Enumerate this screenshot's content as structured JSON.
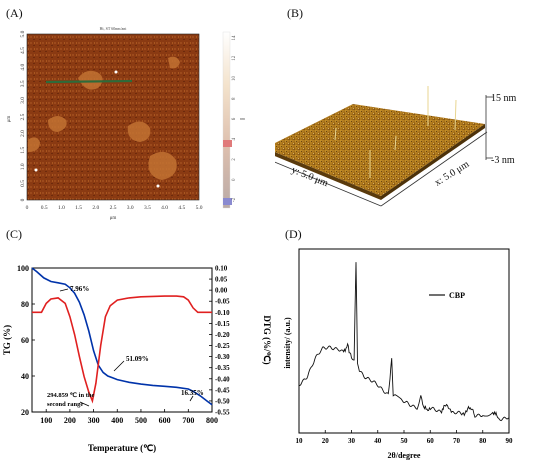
{
  "panels": {
    "a": {
      "label": "(A)",
      "image_header": "Ht, ST 60nm/ant",
      "x_axis_label": "μm",
      "y_axis_label": "μm",
      "x_ticks": [
        "0",
        "0.5",
        "1.0",
        "1.5",
        "2.0",
        "2.5",
        "3.0",
        "3.5",
        "4.0",
        "4.5",
        "5.0"
      ],
      "y_ticks": [
        "0",
        "0.5",
        "1.0",
        "1.5",
        "2.0",
        "2.5",
        "3.0",
        "3.5",
        "4.0",
        "4.5",
        "5.0"
      ],
      "scale_ticks": [
        "14",
        "12",
        "10",
        "8",
        "6",
        "4",
        "2",
        "0",
        "-2"
      ],
      "scale_unit": "nm",
      "colors": {
        "background": "#8a3a12",
        "light": "#c77636",
        "dark": "#5e2108",
        "line": "#2e6b3a"
      }
    },
    "b": {
      "label": "(B)",
      "z_top": "15 nm",
      "z_bottom": "-3 nm",
      "x_axis": "x: 5.0 μm",
      "y_axis": "y: 5.0 μm",
      "colors": {
        "surface": "#b07a1c",
        "shadow": "#6b4510",
        "peak": "#e6d28a"
      }
    },
    "c": {
      "label": "(C)",
      "annotations": {
        "first_loss": "7.96%",
        "second_loss": "51.09%",
        "third_loss": "16.35%",
        "peak_line1": "294.859 ℃ in the",
        "peak_line2": "second range"
      }
    },
    "d": {
      "label": "(D)",
      "legend": "CBP"
    }
  },
  "chart_data": [
    {
      "type": "line",
      "panel": "C",
      "xlabel": "Temperature (℃)",
      "ylabel": "TG (%)",
      "y2label": "DTG (%/℃)",
      "xlim": [
        40,
        800
      ],
      "ylim": [
        20,
        100
      ],
      "y2lim": [
        -0.55,
        0.1
      ],
      "x_ticks": [
        100,
        200,
        300,
        400,
        500,
        600,
        700,
        800
      ],
      "y_ticks": [
        20,
        40,
        60,
        80,
        100
      ],
      "y2_ticks": [
        0.1,
        0.05,
        0.0,
        -0.05,
        -0.1,
        -0.15,
        -0.2,
        -0.25,
        -0.3,
        -0.35,
        -0.4,
        -0.45,
        -0.5,
        -0.55
      ],
      "series": [
        {
          "axis": "left",
          "color": "#0033aa",
          "x": [
            40,
            60,
            90,
            120,
            150,
            180,
            200,
            220,
            240,
            260,
            280,
            300,
            320,
            340,
            360,
            380,
            400,
            450,
            500,
            550,
            600,
            650,
            700,
            720,
            750,
            780,
            800
          ],
          "y": [
            100,
            98,
            94.5,
            92.5,
            91.8,
            91,
            89,
            86,
            81,
            74,
            65,
            54,
            46,
            42,
            40,
            39,
            38,
            36.5,
            35.5,
            34.8,
            34.3,
            33.7,
            32.8,
            31.5,
            29,
            26,
            24
          ]
        },
        {
          "axis": "right",
          "color": "#e02020",
          "x": [
            40,
            80,
            100,
            120,
            150,
            180,
            200,
            220,
            240,
            260,
            280,
            295,
            310,
            330,
            350,
            370,
            400,
            450,
            500,
            550,
            600,
            650,
            680,
            700,
            720,
            740,
            770,
            800
          ],
          "y": [
            -0.1,
            -0.1,
            -0.06,
            -0.04,
            -0.035,
            -0.06,
            -0.12,
            -0.2,
            -0.3,
            -0.39,
            -0.46,
            -0.5,
            -0.42,
            -0.25,
            -0.12,
            -0.07,
            -0.045,
            -0.035,
            -0.03,
            -0.028,
            -0.027,
            -0.027,
            -0.03,
            -0.045,
            -0.08,
            -0.1,
            -0.1,
            -0.1
          ]
        }
      ]
    },
    {
      "type": "line",
      "panel": "D",
      "xlabel": "2θ/degree",
      "ylabel": "intensity/ (a.u.)",
      "xlim": [
        10,
        90
      ],
      "x_ticks": [
        10,
        20,
        30,
        40,
        50,
        60,
        70,
        80,
        90
      ],
      "series": [
        {
          "name": "CBP",
          "color": "#111111",
          "x": [
            10,
            13,
            16,
            19,
            22,
            25,
            27,
            28.5,
            30,
            31,
            31.7,
            32.3,
            33,
            35,
            38,
            41,
            44,
            45.3,
            45.9,
            46.6,
            49,
            52,
            55,
            56.4,
            57.5,
            60,
            64,
            66.2,
            68,
            72,
            75.2,
            77,
            80,
            83.8,
            86,
            90
          ],
          "y": [
            0.22,
            0.28,
            0.38,
            0.44,
            0.46,
            0.45,
            0.42,
            0.47,
            0.39,
            0.37,
            0.98,
            0.36,
            0.32,
            0.28,
            0.24,
            0.2,
            0.17,
            0.38,
            0.16,
            0.15,
            0.12,
            0.1,
            0.09,
            0.15,
            0.08,
            0.07,
            0.06,
            0.1,
            0.05,
            0.04,
            0.08,
            0.04,
            0.03,
            0.06,
            0.02,
            0.02
          ]
        }
      ]
    }
  ]
}
